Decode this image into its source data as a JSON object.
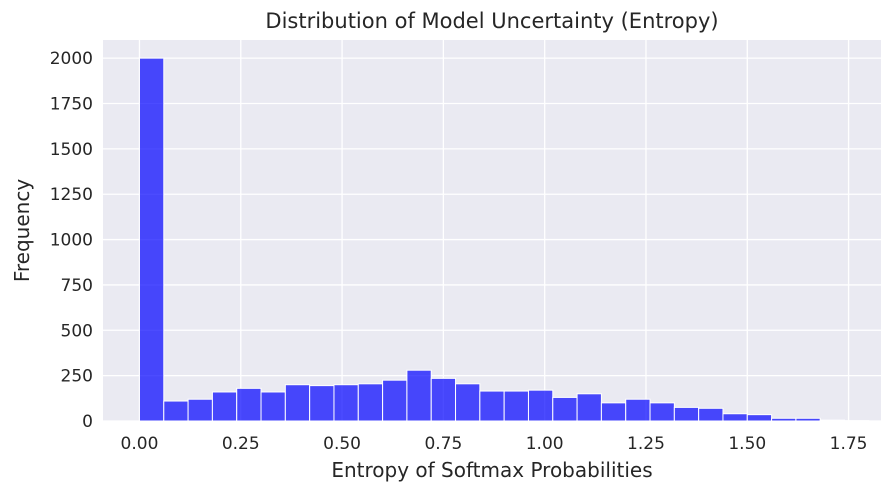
{
  "chart_data": {
    "type": "bar",
    "title": "Distribution of Model Uncertainty (Entropy)",
    "xlabel": "Entropy of Softmax Probabilities",
    "ylabel": "Frequency",
    "bin_width": 0.06,
    "bin_starts": [
      0.0,
      0.06,
      0.12,
      0.18,
      0.24,
      0.3,
      0.36,
      0.42,
      0.48,
      0.54,
      0.6,
      0.66,
      0.72,
      0.78,
      0.84,
      0.9,
      0.96,
      1.02,
      1.08,
      1.14,
      1.2,
      1.26,
      1.32,
      1.38,
      1.44,
      1.5,
      1.56,
      1.62,
      1.68,
      1.74
    ],
    "values": [
      2000,
      110,
      120,
      160,
      180,
      160,
      200,
      195,
      200,
      205,
      225,
      280,
      235,
      205,
      165,
      165,
      170,
      130,
      150,
      100,
      120,
      100,
      75,
      70,
      40,
      35,
      15,
      15,
      5,
      2
    ],
    "xlim": [
      -0.09,
      1.83
    ],
    "ylim": [
      0,
      2100
    ],
    "xticks": [
      0.0,
      0.25,
      0.5,
      0.75,
      1.0,
      1.25,
      1.5,
      1.75
    ],
    "xtick_labels": [
      "0.00",
      "0.25",
      "0.50",
      "0.75",
      "1.00",
      "1.25",
      "1.50",
      "1.75"
    ],
    "yticks": [
      0,
      250,
      500,
      750,
      1000,
      1250,
      1500,
      1750,
      2000
    ],
    "ytick_labels": [
      "0",
      "250",
      "500",
      "750",
      "1000",
      "1250",
      "1500",
      "1750",
      "2000"
    ],
    "bar_color": "#0000ff",
    "bar_alpha": 0.7,
    "background": "#eaeaf2",
    "grid": true,
    "grid_color": "#ffffff",
    "legend": "none"
  }
}
